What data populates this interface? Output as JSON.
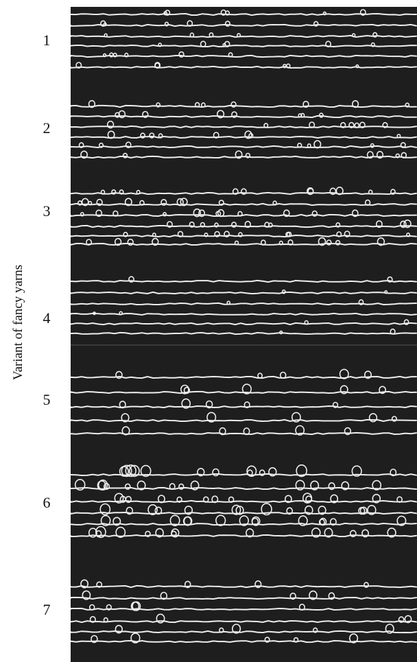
{
  "figure": {
    "axis_title": "Variant of fancy yarns",
    "variant_labels": [
      "1",
      "2",
      "3",
      "4",
      "5",
      "6",
      "7"
    ],
    "background_color": "#1e1e1e",
    "yarn_color": "#eeeeee"
  }
}
